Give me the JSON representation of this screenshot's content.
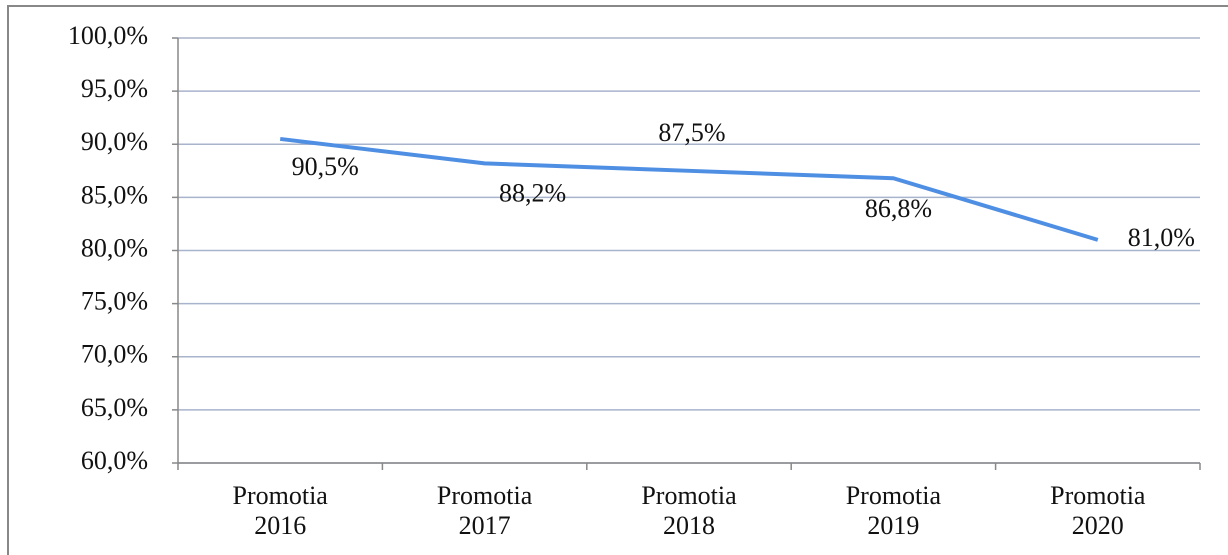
{
  "chart_data": {
    "type": "line",
    "categories": [
      "Promotia 2016",
      "Promotia 2017",
      "Promotia 2018",
      "Promotia 2019",
      "Promotia 2020"
    ],
    "series": [
      {
        "color": "#4f8fe3",
        "values": [
          90.5,
          88.2,
          87.5,
          86.8,
          81.0
        ],
        "value_labels": [
          "90,5%",
          "88,2%",
          "87,5%",
          "86,8%",
          "81,0%"
        ]
      }
    ],
    "ylim": [
      60,
      100
    ],
    "yticks": [
      {
        "value": 60,
        "label": "60,0%"
      },
      {
        "value": 65,
        "label": "65,0%"
      },
      {
        "value": 70,
        "label": "70,0%"
      },
      {
        "value": 75,
        "label": "75,0%"
      },
      {
        "value": 80,
        "label": "80,0%"
      },
      {
        "value": 85,
        "label": "85,0%"
      },
      {
        "value": 90,
        "label": "90,0%"
      },
      {
        "value": 95,
        "label": "95,0%"
      },
      {
        "value": 100,
        "label": "100,0%"
      }
    ],
    "grid": true
  }
}
